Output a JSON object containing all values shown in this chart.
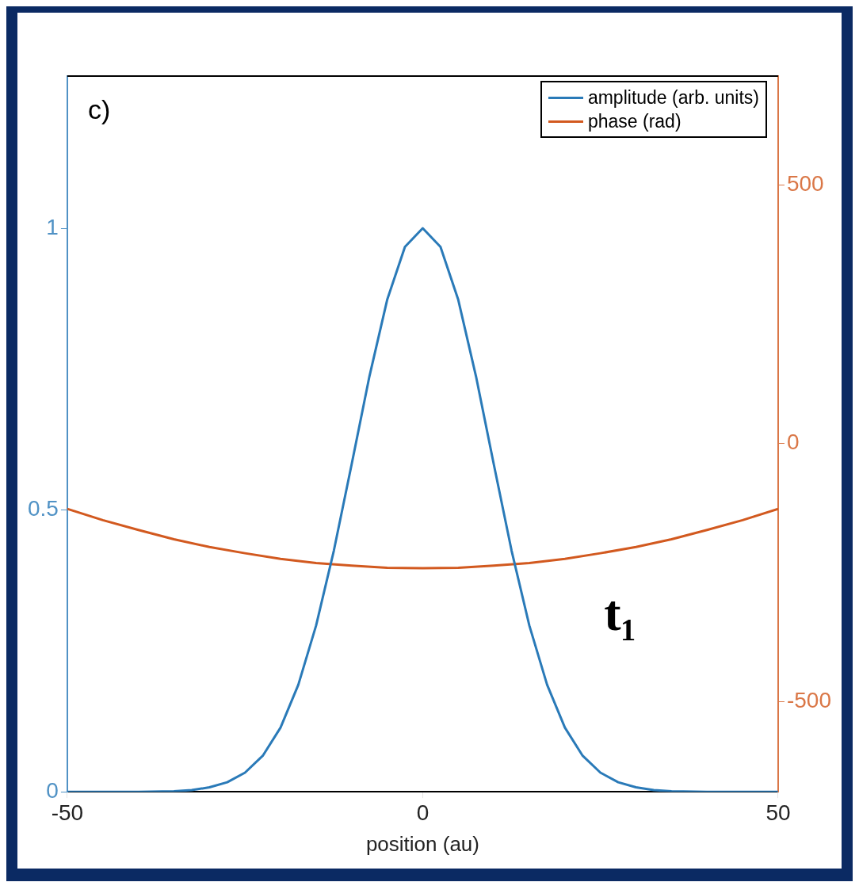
{
  "chart_data": {
    "type": "line",
    "xlabel": "position (au)",
    "annotations": [
      "c)",
      "t₁"
    ],
    "xlim": [
      -50,
      50
    ],
    "xticks": [
      -50,
      0,
      50
    ],
    "ylim": [
      0,
      1.27
    ],
    "yticks": [
      0,
      0.5,
      1
    ],
    "y2lim": [
      -675,
      711
    ],
    "y2ticks": [
      -500,
      0,
      500
    ],
    "grid": false,
    "legend": "top right",
    "marker": "none",
    "line_style": "solid",
    "series": [
      {
        "name": "amplitude (arb. units)",
        "color": "#2a7ab8",
        "x": [
          -50,
          -40,
          -35,
          -32.5,
          -30,
          -27.5,
          -25,
          -22.5,
          -20,
          -17.5,
          -15,
          -12.5,
          -10,
          -7.5,
          -5,
          -2.5,
          0,
          2.5,
          5,
          7.5,
          10,
          12.5,
          15,
          17.5,
          20,
          22.5,
          25,
          27.5,
          30,
          32.5,
          35,
          40,
          50
        ],
        "values": [
          0,
          0,
          0.001,
          0.003,
          0.008,
          0.017,
          0.034,
          0.064,
          0.114,
          0.19,
          0.295,
          0.428,
          0.581,
          0.737,
          0.873,
          0.967,
          1,
          0.967,
          0.873,
          0.737,
          0.581,
          0.428,
          0.295,
          0.19,
          0.114,
          0.064,
          0.034,
          0.017,
          0.008,
          0.003,
          0.001,
          0,
          0
        ]
      },
      {
        "name": "phase (rad)",
        "color": "#d2591f",
        "axis": "y2",
        "x": [
          -50,
          -45,
          -40,
          -35,
          -30,
          -25,
          -20,
          -15,
          -10,
          -5,
          0,
          5,
          10,
          15,
          20,
          25,
          30,
          35,
          40,
          45,
          50
        ],
        "values": [
          -127,
          -149,
          -168,
          -186,
          -201,
          -213,
          -224,
          -232,
          -237,
          -241,
          -242,
          -241,
          -237,
          -232,
          -224,
          -213,
          -201,
          -186,
          -168,
          -149,
          -127
        ]
      }
    ]
  }
}
